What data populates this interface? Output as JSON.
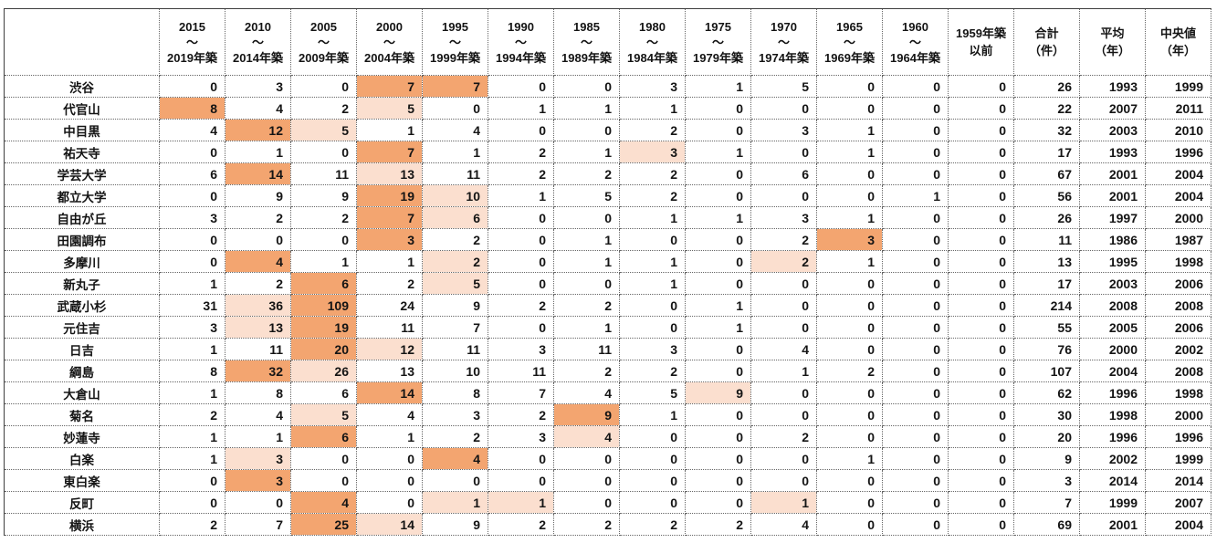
{
  "colors": {
    "highlight_max": "#F3A570",
    "highlight_second": "#FBDFCF",
    "grid_dotted": "#666666",
    "grid_outer": "#3F3F3F",
    "text": "#141414",
    "background": "#FFFFFF"
  },
  "table": {
    "corner_label": "",
    "headers": [
      [
        "2015",
        "～",
        "2019年築"
      ],
      [
        "2010",
        "～",
        "2014年築"
      ],
      [
        "2005",
        "～",
        "2009年築"
      ],
      [
        "2000",
        "～",
        "2004年築"
      ],
      [
        "1995",
        "～",
        "1999年築"
      ],
      [
        "1990",
        "～",
        "1994年築"
      ],
      [
        "1985",
        "～",
        "1989年築"
      ],
      [
        "1980",
        "～",
        "1984年築"
      ],
      [
        "1975",
        "～",
        "1979年築"
      ],
      [
        "1970",
        "～",
        "1974年築"
      ],
      [
        "1965",
        "～",
        "1969年築"
      ],
      [
        "1960",
        "～",
        "1964年築"
      ],
      [
        "1959年築",
        "以前"
      ],
      [
        "合計",
        "（件）"
      ],
      [
        "平均",
        "（年）"
      ],
      [
        "中央値",
        "（年）"
      ]
    ],
    "rows": [
      {
        "station": "渋谷",
        "values": [
          0,
          3,
          0,
          7,
          7,
          0,
          0,
          3,
          1,
          5,
          0,
          0,
          0,
          26,
          1993,
          1999
        ],
        "highlights": {
          "3": "max",
          "4": "max"
        }
      },
      {
        "station": "代官山",
        "values": [
          8,
          4,
          2,
          5,
          0,
          1,
          1,
          1,
          0,
          0,
          0,
          0,
          0,
          22,
          2007,
          2011
        ],
        "highlights": {
          "0": "max",
          "3": "second"
        }
      },
      {
        "station": "中目黒",
        "values": [
          4,
          12,
          5,
          1,
          4,
          0,
          0,
          2,
          0,
          3,
          1,
          0,
          0,
          32,
          2003,
          2010
        ],
        "highlights": {
          "1": "max",
          "2": "second"
        }
      },
      {
        "station": "祐天寺",
        "values": [
          0,
          1,
          0,
          7,
          1,
          2,
          1,
          3,
          1,
          0,
          1,
          0,
          0,
          17,
          1993,
          1996
        ],
        "highlights": {
          "3": "max",
          "7": "second"
        }
      },
      {
        "station": "学芸大学",
        "values": [
          6,
          14,
          11,
          13,
          11,
          2,
          2,
          2,
          0,
          6,
          0,
          0,
          0,
          67,
          2001,
          2004
        ],
        "highlights": {
          "1": "max",
          "3": "second"
        }
      },
      {
        "station": "都立大学",
        "values": [
          0,
          9,
          9,
          19,
          10,
          1,
          5,
          2,
          0,
          0,
          0,
          1,
          0,
          56,
          2001,
          2004
        ],
        "highlights": {
          "3": "max",
          "4": "second"
        }
      },
      {
        "station": "自由が丘",
        "values": [
          3,
          2,
          2,
          7,
          6,
          0,
          0,
          1,
          1,
          3,
          1,
          0,
          0,
          26,
          1997,
          2000
        ],
        "highlights": {
          "3": "max",
          "4": "second"
        }
      },
      {
        "station": "田園調布",
        "values": [
          0,
          0,
          0,
          3,
          2,
          0,
          1,
          0,
          0,
          2,
          3,
          0,
          0,
          11,
          1986,
          1987
        ],
        "highlights": {
          "3": "max",
          "10": "max"
        }
      },
      {
        "station": "多摩川",
        "values": [
          0,
          4,
          1,
          1,
          2,
          0,
          1,
          1,
          0,
          2,
          1,
          0,
          0,
          13,
          1995,
          1998
        ],
        "highlights": {
          "1": "max",
          "4": "second",
          "9": "second"
        }
      },
      {
        "station": "新丸子",
        "values": [
          1,
          2,
          6,
          2,
          5,
          0,
          0,
          1,
          0,
          0,
          0,
          0,
          0,
          17,
          2003,
          2006
        ],
        "highlights": {
          "2": "max",
          "4": "second"
        }
      },
      {
        "station": "武蔵小杉",
        "values": [
          31,
          36,
          109,
          24,
          9,
          2,
          2,
          0,
          1,
          0,
          0,
          0,
          0,
          214,
          2008,
          2008
        ],
        "highlights": {
          "2": "max",
          "1": "second"
        }
      },
      {
        "station": "元住吉",
        "values": [
          3,
          13,
          19,
          11,
          7,
          0,
          1,
          0,
          1,
          0,
          0,
          0,
          0,
          55,
          2005,
          2006
        ],
        "highlights": {
          "2": "max",
          "1": "second"
        }
      },
      {
        "station": "日吉",
        "values": [
          1,
          11,
          20,
          12,
          11,
          3,
          11,
          3,
          0,
          4,
          0,
          0,
          0,
          76,
          2000,
          2002
        ],
        "highlights": {
          "2": "max",
          "3": "second"
        }
      },
      {
        "station": "綱島",
        "values": [
          8,
          32,
          26,
          13,
          10,
          11,
          2,
          2,
          0,
          1,
          2,
          0,
          0,
          107,
          2004,
          2008
        ],
        "highlights": {
          "1": "max",
          "2": "second"
        }
      },
      {
        "station": "大倉山",
        "values": [
          1,
          8,
          6,
          14,
          8,
          7,
          4,
          5,
          9,
          0,
          0,
          0,
          0,
          62,
          1996,
          1998
        ],
        "highlights": {
          "3": "max",
          "8": "second"
        }
      },
      {
        "station": "菊名",
        "values": [
          2,
          4,
          5,
          4,
          3,
          2,
          9,
          1,
          0,
          0,
          0,
          0,
          0,
          30,
          1998,
          2000
        ],
        "highlights": {
          "6": "max",
          "2": "second"
        }
      },
      {
        "station": "妙蓮寺",
        "values": [
          1,
          1,
          6,
          1,
          2,
          3,
          4,
          0,
          0,
          2,
          0,
          0,
          0,
          20,
          1996,
          1996
        ],
        "highlights": {
          "2": "max",
          "6": "second"
        }
      },
      {
        "station": "白楽",
        "values": [
          1,
          3,
          0,
          0,
          4,
          0,
          0,
          0,
          0,
          0,
          1,
          0,
          0,
          9,
          2002,
          1999
        ],
        "highlights": {
          "4": "max",
          "1": "second"
        }
      },
      {
        "station": "東白楽",
        "values": [
          0,
          3,
          0,
          0,
          0,
          0,
          0,
          0,
          0,
          0,
          0,
          0,
          0,
          3,
          2014,
          2014
        ],
        "highlights": {
          "1": "max"
        }
      },
      {
        "station": "反町",
        "values": [
          0,
          0,
          4,
          0,
          1,
          1,
          0,
          0,
          0,
          1,
          0,
          0,
          0,
          7,
          1999,
          2007
        ],
        "highlights": {
          "2": "max",
          "4": "second",
          "5": "second",
          "9": "second"
        }
      },
      {
        "station": "横浜",
        "values": [
          2,
          7,
          25,
          14,
          9,
          2,
          2,
          2,
          2,
          4,
          0,
          0,
          0,
          69,
          2001,
          2004
        ],
        "highlights": {
          "2": "max",
          "3": "second"
        }
      }
    ]
  }
}
